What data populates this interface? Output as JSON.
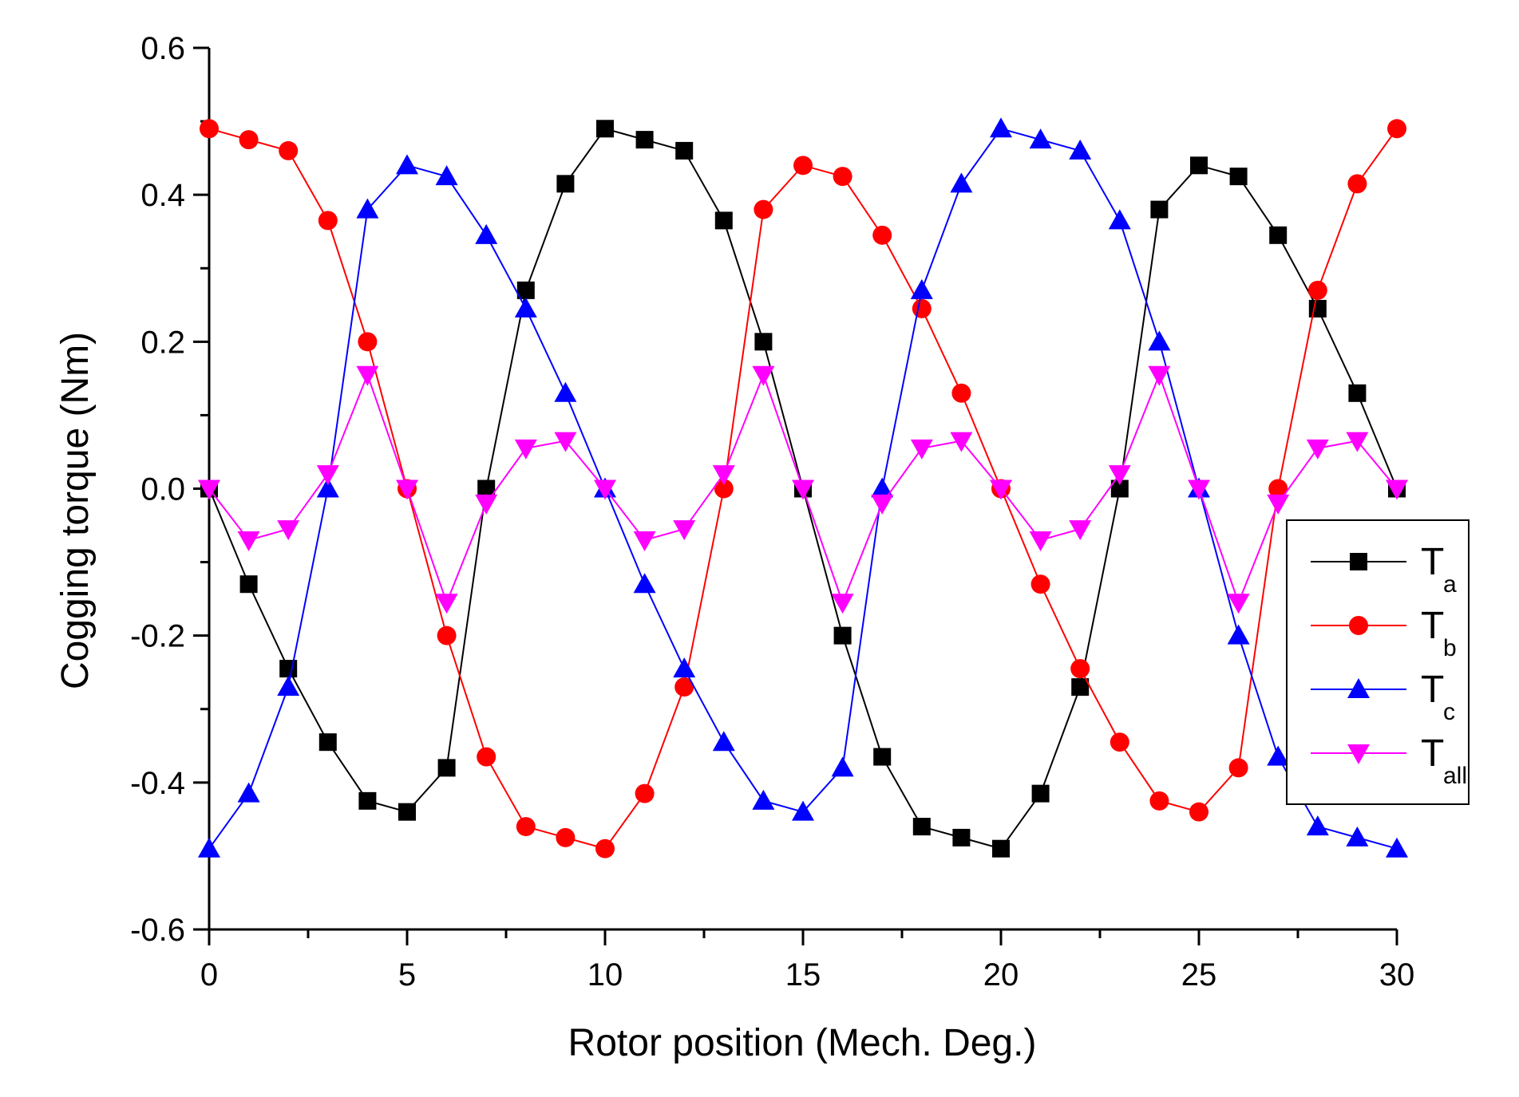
{
  "chart_data": {
    "type": "line",
    "title": "",
    "xlabel": "Rotor position (Mech. Deg.)",
    "ylabel": "Cogging torque (Nm)",
    "xlim": [
      0,
      30
    ],
    "ylim": [
      -0.6,
      0.6
    ],
    "x_ticks": [
      0,
      5,
      10,
      15,
      20,
      25,
      30
    ],
    "x_tick_labels": [
      "0",
      "5",
      "10",
      "15",
      "20",
      "25",
      "30"
    ],
    "y_ticks": [
      -0.6,
      -0.4,
      -0.2,
      0.0,
      0.2,
      0.4,
      0.6
    ],
    "y_tick_labels": [
      "-0.6",
      "-0.4",
      "-0.2",
      "0.0",
      "0.2",
      "0.4",
      "0.6"
    ],
    "grid": false,
    "legend_position": "right",
    "x": [
      0,
      1,
      2,
      3,
      4,
      5,
      6,
      7,
      8,
      9,
      10,
      11,
      12,
      13,
      14,
      15,
      16,
      17,
      18,
      19,
      20,
      21,
      22,
      23,
      24,
      25,
      26,
      27,
      28,
      29,
      30
    ],
    "series": [
      {
        "name": "T",
        "subscript": "a",
        "color": "#000000",
        "marker": "square",
        "values": [
          0.0,
          -0.13,
          -0.245,
          -0.345,
          -0.425,
          -0.44,
          -0.38,
          0.0,
          0.27,
          0.415,
          0.49,
          0.475,
          0.46,
          0.365,
          0.2,
          0.0,
          -0.2,
          -0.365,
          -0.46,
          -0.475,
          -0.49,
          -0.415,
          -0.27,
          0.0,
          0.38,
          0.44,
          0.425,
          0.345,
          0.245,
          0.13,
          0.0
        ]
      },
      {
        "name": "T",
        "subscript": "b",
        "color": "#ff0000",
        "marker": "circle",
        "values": [
          0.49,
          0.475,
          0.46,
          0.365,
          0.2,
          0.0,
          -0.2,
          -0.365,
          -0.46,
          -0.475,
          -0.49,
          -0.415,
          -0.27,
          0.0,
          0.38,
          0.44,
          0.425,
          0.345,
          0.245,
          0.13,
          0.0,
          -0.13,
          -0.245,
          -0.345,
          -0.425,
          -0.44,
          -0.38,
          0.0,
          0.27,
          0.415,
          0.49
        ]
      },
      {
        "name": "T",
        "subscript": "c",
        "color": "#0000ff",
        "marker": "triangle-up",
        "values": [
          -0.49,
          -0.415,
          -0.27,
          0.0,
          0.38,
          0.44,
          0.425,
          0.345,
          0.245,
          0.13,
          0.0,
          -0.13,
          -0.245,
          -0.345,
          -0.425,
          -0.44,
          -0.38,
          0.0,
          0.27,
          0.415,
          0.49,
          0.475,
          0.46,
          0.365,
          0.2,
          0.0,
          -0.2,
          -0.365,
          -0.46,
          -0.475,
          -0.49
        ]
      },
      {
        "name": "T",
        "subscript": "all",
        "color": "#ff00ff",
        "marker": "triangle-down",
        "values": [
          0.0,
          -0.07,
          -0.055,
          0.02,
          0.155,
          0.0,
          -0.155,
          -0.02,
          0.055,
          0.065,
          0.0,
          -0.07,
          -0.055,
          0.02,
          0.155,
          0.0,
          -0.155,
          -0.02,
          0.055,
          0.065,
          0.0,
          -0.07,
          -0.055,
          0.02,
          0.155,
          0.0,
          -0.155,
          -0.02,
          0.055,
          0.065,
          0.0
        ]
      }
    ]
  }
}
